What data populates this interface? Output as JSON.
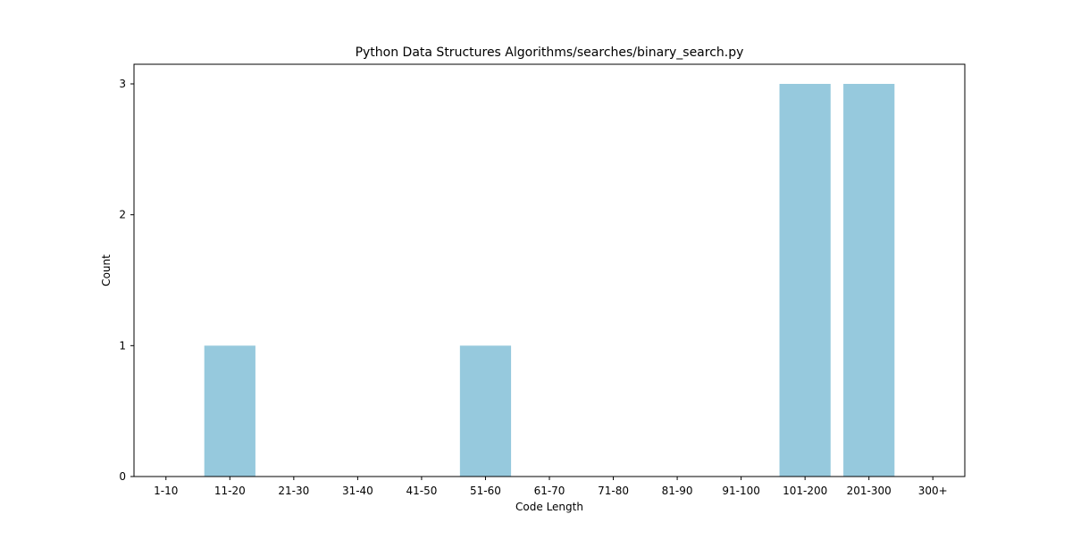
{
  "chart_data": {
    "type": "bar",
    "title": "Python Data Structures Algorithms/searches/binary_search.py",
    "xlabel": "Code Length",
    "ylabel": "Count",
    "categories": [
      "1-10",
      "11-20",
      "21-30",
      "31-40",
      "41-50",
      "51-60",
      "61-70",
      "71-80",
      "81-90",
      "91-100",
      "101-200",
      "201-300",
      "300+"
    ],
    "values": [
      0,
      1,
      0,
      0,
      0,
      1,
      0,
      0,
      0,
      0,
      3,
      3,
      0
    ],
    "ylim": [
      0,
      3.15
    ],
    "yticks": [
      0,
      1,
      2,
      3
    ],
    "grid": false,
    "legend": "none",
    "bar_color": "#96c9dd"
  }
}
